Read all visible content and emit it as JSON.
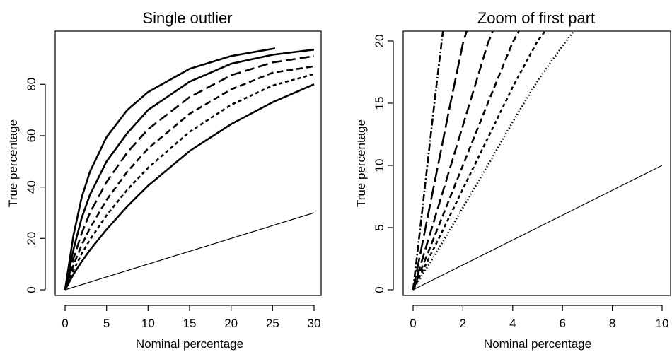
{
  "chart_data": [
    {
      "type": "line",
      "title": "Single outlier",
      "xlabel": "Nominal percentage",
      "ylabel": "True percentage",
      "xlim": [
        0,
        30
      ],
      "ylim": [
        0,
        94
      ],
      "xticks": [
        "0",
        "5",
        "10",
        "15",
        "20",
        "25",
        "30"
      ],
      "yticks": [
        "0",
        "20",
        "40",
        "60",
        "80"
      ],
      "series": [
        {
          "style": "solid-thin",
          "x": [
            0,
            30
          ],
          "y": [
            0,
            30
          ]
        },
        {
          "style": "solid-thick",
          "x": [
            0,
            1,
            2,
            3,
            5,
            7.5,
            10,
            15,
            20,
            25,
            30
          ],
          "y": [
            0,
            6,
            11,
            15.5,
            23.5,
            32.5,
            40.5,
            54,
            64.5,
            73,
            80
          ]
        },
        {
          "style": "short-dash",
          "x": [
            0,
            1,
            2,
            3,
            5,
            7.5,
            10,
            15,
            20,
            25,
            30
          ],
          "y": [
            0,
            7.5,
            14,
            19.5,
            29,
            39,
            47.5,
            61.5,
            72,
            79.5,
            84
          ]
        },
        {
          "style": "medium-dash",
          "x": [
            0,
            1,
            2,
            3,
            5,
            7.5,
            10,
            15,
            20,
            25,
            30
          ],
          "y": [
            0,
            9.5,
            17.5,
            24,
            35,
            46,
            55,
            68.5,
            78,
            84.5,
            87
          ]
        },
        {
          "style": "long-dash",
          "x": [
            0,
            1,
            2,
            3,
            5,
            7.5,
            10,
            15,
            20,
            25,
            30
          ],
          "y": [
            0,
            12,
            22,
            30,
            42,
            53.5,
            62.5,
            75,
            83.5,
            88.5,
            91
          ]
        },
        {
          "style": "solid-thick",
          "x": [
            0,
            1,
            2,
            3,
            5,
            7.5,
            10,
            15,
            20,
            25,
            30
          ],
          "y": [
            0,
            15.5,
            28,
            37,
            50,
            61,
            70,
            81,
            88,
            91.5,
            93.5
          ]
        },
        {
          "style": "solid-thick",
          "x": [
            0,
            1,
            2,
            3,
            5,
            7.5,
            10,
            15,
            20,
            25.3
          ],
          "y": [
            0,
            21,
            36,
            46,
            59.5,
            70,
            77,
            86,
            91,
            94
          ]
        }
      ]
    },
    {
      "type": "line",
      "title": "Zoom of first part",
      "xlabel": "Nominal percentage",
      "ylabel": "True percentage",
      "xlim": [
        0,
        10
      ],
      "ylim": [
        0,
        21
      ],
      "xticks": [
        "0",
        "2",
        "4",
        "6",
        "8",
        "10"
      ],
      "yticks": [
        "0",
        "5",
        "10",
        "15",
        "20"
      ],
      "series": [
        {
          "style": "solid-thin",
          "x": [
            0,
            10
          ],
          "y": [
            0,
            10
          ]
        },
        {
          "style": "dotted",
          "x": [
            0,
            0.5,
            1,
            2,
            3,
            4,
            5,
            6,
            6.45
          ],
          "y": [
            0,
            1.6,
            3.2,
            6.6,
            10,
            13.5,
            16.8,
            19.6,
            21
          ]
        },
        {
          "style": "short-dash",
          "x": [
            0,
            0.5,
            1,
            2,
            3,
            4,
            5,
            5.3
          ],
          "y": [
            0,
            2,
            4,
            8.1,
            12.2,
            16.3,
            20,
            21
          ]
        },
        {
          "style": "medium-dash",
          "x": [
            0,
            0.5,
            1,
            2,
            3,
            4,
            4.25
          ],
          "y": [
            0,
            2.5,
            5,
            10,
            15,
            19.9,
            21
          ]
        },
        {
          "style": "long-dash",
          "x": [
            0,
            0.5,
            1,
            2,
            3,
            3.2
          ],
          "y": [
            0,
            3.3,
            6.6,
            13.2,
            19.8,
            21
          ]
        },
        {
          "style": "long-dash-heavy",
          "x": [
            0,
            0.5,
            1,
            1.5,
            2,
            2.15
          ],
          "y": [
            0,
            5,
            10,
            15,
            19.8,
            21
          ]
        },
        {
          "style": "dash-dot",
          "x": [
            0,
            0.3,
            0.6,
            0.9,
            1.2
          ],
          "y": [
            0,
            5.2,
            10.5,
            15.8,
            21
          ]
        }
      ]
    }
  ]
}
